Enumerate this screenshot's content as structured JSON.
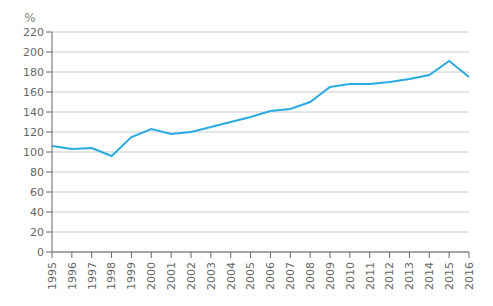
{
  "chart_data": {
    "type": "line",
    "ylabel": "%",
    "x": [
      1995,
      1996,
      1997,
      1998,
      1999,
      2000,
      2001,
      2002,
      2003,
      2004,
      2005,
      2006,
      2007,
      2008,
      2009,
      2010,
      2011,
      2012,
      2013,
      2014,
      2015,
      2016
    ],
    "values": [
      106,
      103,
      104,
      96,
      115,
      123,
      118,
      120,
      125,
      130,
      135,
      141,
      143,
      150,
      165,
      168,
      168,
      170,
      173,
      177,
      191,
      175
    ],
    "color": "#29abe2",
    "xlim": [
      1995,
      2016
    ],
    "xticks": [
      1995,
      1996,
      1997,
      1998,
      1999,
      2000,
      2001,
      2002,
      2003,
      2004,
      2005,
      2006,
      2007,
      2008,
      2009,
      2010,
      2011,
      2012,
      2013,
      2014,
      2015,
      2016
    ],
    "ylim": [
      0,
      220
    ],
    "yticks": [
      0,
      20,
      40,
      60,
      80,
      100,
      120,
      140,
      160,
      180,
      200,
      220
    ],
    "grid": "y"
  }
}
